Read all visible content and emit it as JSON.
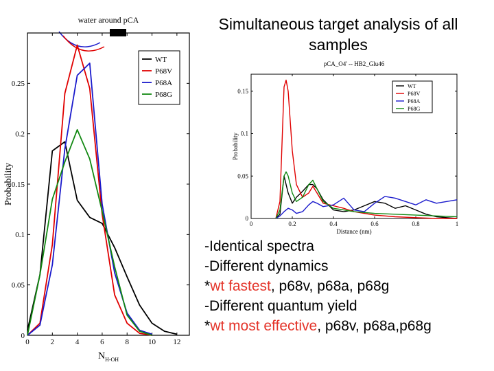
{
  "slide": {
    "title_line1": "Simultaneous target analysis of all",
    "title_line2": "samples",
    "bullets": [
      {
        "prefix": "-Identical spectra",
        "highlight": "",
        "suffix": ""
      },
      {
        "prefix": "-Different dynamics",
        "highlight": "",
        "suffix": ""
      },
      {
        "prefix": "*",
        "highlight": "wt fastest",
        "suffix": ", p68v, p68a, p68g"
      },
      {
        "prefix": "-Different quantum yield",
        "highlight": "",
        "suffix": ""
      },
      {
        "prefix": "*",
        "highlight": "wt most effective",
        "suffix": ", p68v, p68a,p68g"
      }
    ],
    "highlight_color": "#e4342a"
  },
  "chart_data": [
    {
      "type": "line",
      "title": "water around pCA",
      "xlabel": "N",
      "xlabel_sub": "H-OH",
      "ylabel": "Probability",
      "xlim": [
        0,
        13
      ],
      "ylim": [
        0,
        0.3
      ],
      "xticks": [
        0,
        2,
        4,
        6,
        8,
        10,
        12
      ],
      "yticks": [
        0,
        0.05,
        0.1,
        0.15,
        0.2,
        0.25
      ],
      "ytick_labels": [
        "0",
        "0.05",
        "0.1",
        "0.15",
        "0.2",
        "0.25"
      ],
      "legend_position": "top-right",
      "series": [
        {
          "name": "WT",
          "color": "#000000",
          "x": [
            0,
            1,
            2,
            3,
            4,
            5,
            6,
            7,
            8,
            9,
            10,
            11,
            12
          ],
          "y": [
            0.005,
            0.06,
            0.183,
            0.192,
            0.134,
            0.117,
            0.111,
            0.087,
            0.058,
            0.03,
            0.012,
            0.004,
            0.001
          ]
        },
        {
          "name": "P68V",
          "color": "#e00000",
          "x": [
            0,
            1,
            2,
            3,
            4,
            5,
            6,
            7,
            8,
            9,
            10
          ],
          "y": [
            0,
            0.012,
            0.09,
            0.24,
            0.288,
            0.245,
            0.12,
            0.04,
            0.012,
            0.002,
            0
          ]
        },
        {
          "name": "P68A",
          "color": "#1a1acc",
          "x": [
            0,
            1,
            2,
            3,
            4,
            5,
            6,
            7,
            8,
            9,
            10
          ],
          "y": [
            0,
            0.01,
            0.07,
            0.185,
            0.258,
            0.27,
            0.13,
            0.062,
            0.022,
            0.005,
            0.001
          ]
        },
        {
          "name": "P68G",
          "color": "#118811",
          "x": [
            0,
            1,
            2,
            3,
            4,
            5,
            6,
            7,
            8,
            9,
            10
          ],
          "y": [
            0,
            0.06,
            0.135,
            0.172,
            0.204,
            0.175,
            0.123,
            0.068,
            0.02,
            0.004,
            0
          ]
        }
      ]
    },
    {
      "type": "line",
      "title": "pCA_O4' -- HB2_Glu46",
      "xlabel": "Distance (nm)",
      "ylabel": "Probability",
      "xlim": [
        0,
        1
      ],
      "ylim": [
        0,
        0.17
      ],
      "xticks": [
        0,
        0.2,
        0.4,
        0.6,
        0.8,
        1
      ],
      "xtick_labels": [
        "0",
        "0.2",
        "0.4",
        "0.6",
        "0.8",
        "1"
      ],
      "yticks": [
        0,
        0.05,
        0.1,
        0.15
      ],
      "ytick_labels": [
        "0",
        "0.05",
        "0.1",
        "0.15"
      ],
      "legend_position": "top-right",
      "series": [
        {
          "name": "WT",
          "color": "#000000",
          "x": [
            0.12,
            0.14,
            0.16,
            0.18,
            0.2,
            0.22,
            0.25,
            0.28,
            0.3,
            0.32,
            0.35,
            0.4,
            0.45,
            0.5,
            0.55,
            0.6,
            0.65,
            0.7,
            0.75,
            0.8,
            0.85,
            0.9,
            0.95,
            1
          ],
          "y": [
            0,
            0.005,
            0.05,
            0.03,
            0.018,
            0.025,
            0.032,
            0.04,
            0.04,
            0.035,
            0.022,
            0.01,
            0.008,
            0.01,
            0.015,
            0.02,
            0.018,
            0.012,
            0.015,
            0.01,
            0.005,
            0.002,
            0.001,
            0
          ]
        },
        {
          "name": "P68V",
          "color": "#e00000",
          "x": [
            0.12,
            0.14,
            0.16,
            0.17,
            0.18,
            0.2,
            0.22,
            0.25,
            0.28,
            0.3,
            0.32,
            0.35,
            0.4,
            0.45,
            0.5,
            0.6,
            0.7,
            0.8,
            0.9,
            1
          ],
          "y": [
            0,
            0.02,
            0.155,
            0.163,
            0.15,
            0.08,
            0.04,
            0.025,
            0.03,
            0.038,
            0.03,
            0.018,
            0.015,
            0.012,
            0.008,
            0.004,
            0.002,
            0.001,
            0,
            0
          ]
        },
        {
          "name": "P68A",
          "color": "#1a1acc",
          "x": [
            0.12,
            0.14,
            0.16,
            0.18,
            0.2,
            0.22,
            0.25,
            0.28,
            0.3,
            0.32,
            0.35,
            0.4,
            0.45,
            0.5,
            0.55,
            0.6,
            0.65,
            0.7,
            0.75,
            0.8,
            0.85,
            0.9,
            0.95,
            1
          ],
          "y": [
            0,
            0.003,
            0.008,
            0.012,
            0.01,
            0.006,
            0.008,
            0.016,
            0.02,
            0.018,
            0.014,
            0.016,
            0.024,
            0.01,
            0.008,
            0.018,
            0.026,
            0.024,
            0.02,
            0.016,
            0.022,
            0.018,
            0.02,
            0.022
          ]
        },
        {
          "name": "P68G",
          "color": "#118811",
          "x": [
            0.12,
            0.14,
            0.16,
            0.17,
            0.18,
            0.2,
            0.22,
            0.25,
            0.28,
            0.3,
            0.32,
            0.35,
            0.4,
            0.45,
            0.5,
            0.6,
            0.7,
            0.8,
            0.9,
            1
          ],
          "y": [
            0,
            0.01,
            0.05,
            0.055,
            0.05,
            0.03,
            0.02,
            0.025,
            0.04,
            0.045,
            0.035,
            0.02,
            0.012,
            0.01,
            0.008,
            0.006,
            0.005,
            0.004,
            0.003,
            0.002
          ]
        }
      ]
    }
  ]
}
